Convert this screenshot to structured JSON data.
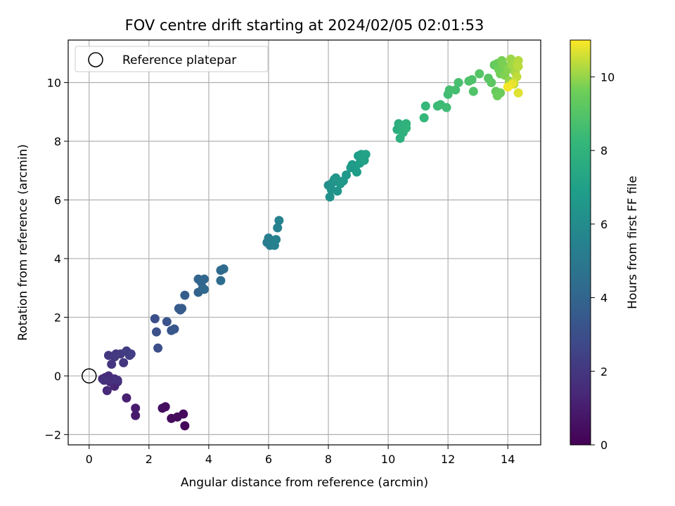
{
  "chart_data": {
    "type": "scatter",
    "title": "FOV centre drift starting at 2024/02/05 02:01:53",
    "xlabel": "Angular distance from reference (arcmin)",
    "ylabel": "Rotation from reference (arcmin)",
    "xlim": [
      -0.7,
      15.1
    ],
    "ylim": [
      -2.35,
      11.45
    ],
    "xticks": [
      0,
      2,
      4,
      6,
      8,
      10,
      12,
      14
    ],
    "yticks": [
      -2,
      0,
      2,
      4,
      6,
      8,
      10
    ],
    "grid": true,
    "legend": {
      "placement": "top-left",
      "entries": [
        "Reference platepar"
      ]
    },
    "reference_point": {
      "x": 0,
      "y": 0,
      "label": "Reference platepar"
    },
    "colorbar": {
      "label": "Hours from first FF file",
      "range": [
        0,
        11
      ],
      "ticks": [
        0,
        2,
        4,
        6,
        8,
        10
      ],
      "colormap": "viridis"
    },
    "series": [
      {
        "points": [
          [
            3.2,
            -1.7,
            0.2
          ],
          [
            3.15,
            -1.3,
            0.3
          ],
          [
            2.95,
            -1.4,
            0.35
          ],
          [
            2.75,
            -1.45,
            0.4
          ],
          [
            2.55,
            -1.05,
            0.45
          ],
          [
            2.45,
            -1.1,
            0.5
          ],
          [
            1.55,
            -1.35,
            0.9
          ],
          [
            1.55,
            -1.1,
            0.95
          ],
          [
            1.25,
            -0.75,
            1.1
          ],
          [
            0.85,
            -0.35,
            1.3
          ],
          [
            0.95,
            -0.2,
            1.35
          ],
          [
            0.7,
            -0.2,
            1.4
          ],
          [
            0.6,
            -0.5,
            1.45
          ],
          [
            0.45,
            -0.1,
            1.5
          ],
          [
            0.55,
            -0.05,
            1.55
          ],
          [
            0.65,
            0.0,
            1.6
          ],
          [
            0.75,
            -0.15,
            1.65
          ],
          [
            0.85,
            -0.1,
            1.7
          ],
          [
            0.95,
            -0.15,
            1.75
          ],
          [
            0.5,
            -0.15,
            1.8
          ],
          [
            0.75,
            0.4,
            1.9
          ],
          [
            1.15,
            0.45,
            1.95
          ],
          [
            0.65,
            0.7,
            2.0
          ],
          [
            0.9,
            0.75,
            2.05
          ],
          [
            0.85,
            0.65,
            2.1
          ],
          [
            1.05,
            0.75,
            2.15
          ],
          [
            1.25,
            0.85,
            2.2
          ],
          [
            1.35,
            0.7,
            2.25
          ],
          [
            1.4,
            0.75,
            2.3
          ],
          [
            2.3,
            0.95,
            3.0
          ],
          [
            2.2,
            1.95,
            3.05
          ],
          [
            2.25,
            1.5,
            3.1
          ],
          [
            2.6,
            1.85,
            3.2
          ],
          [
            2.75,
            1.55,
            3.3
          ],
          [
            2.85,
            1.6,
            3.35
          ],
          [
            3.0,
            2.3,
            3.5
          ],
          [
            3.05,
            2.25,
            3.55
          ],
          [
            3.1,
            2.3,
            3.6
          ],
          [
            3.2,
            2.75,
            3.65
          ],
          [
            3.65,
            2.85,
            3.9
          ],
          [
            3.65,
            3.3,
            3.95
          ],
          [
            3.75,
            3.2,
            4.0
          ],
          [
            3.8,
            3.0,
            4.05
          ],
          [
            3.85,
            3.3,
            4.1
          ],
          [
            3.85,
            2.95,
            4.15
          ],
          [
            4.4,
            3.6,
            4.3
          ],
          [
            4.5,
            3.65,
            4.35
          ],
          [
            4.4,
            3.25,
            4.4
          ],
          [
            5.95,
            4.55,
            5.2
          ],
          [
            6.05,
            4.45,
            5.25
          ],
          [
            6.0,
            4.7,
            5.3
          ],
          [
            6.1,
            4.5,
            5.35
          ],
          [
            6.2,
            4.45,
            5.4
          ],
          [
            6.25,
            4.65,
            5.45
          ],
          [
            6.3,
            5.05,
            5.5
          ],
          [
            6.35,
            5.3,
            5.55
          ],
          [
            8.0,
            6.5,
            6.2
          ],
          [
            8.05,
            6.1,
            6.25
          ],
          [
            8.1,
            6.35,
            6.3
          ],
          [
            8.15,
            6.6,
            6.35
          ],
          [
            8.2,
            6.7,
            6.4
          ],
          [
            8.3,
            6.3,
            6.45
          ],
          [
            8.25,
            6.75,
            6.5
          ],
          [
            8.4,
            6.55,
            6.55
          ],
          [
            8.5,
            6.65,
            6.6
          ],
          [
            8.6,
            6.85,
            6.65
          ],
          [
            8.75,
            7.1,
            6.7
          ],
          [
            8.8,
            7.2,
            6.75
          ],
          [
            8.9,
            7.05,
            6.8
          ],
          [
            8.95,
            6.95,
            6.85
          ],
          [
            9.0,
            7.5,
            6.9
          ],
          [
            9.05,
            7.25,
            6.95
          ],
          [
            9.1,
            7.55,
            7.0
          ],
          [
            9.2,
            7.35,
            7.05
          ],
          [
            9.25,
            7.55,
            7.1
          ],
          [
            10.3,
            8.4,
            7.7
          ],
          [
            10.35,
            8.6,
            7.75
          ],
          [
            10.4,
            8.1,
            7.8
          ],
          [
            10.45,
            8.5,
            7.85
          ],
          [
            10.5,
            8.3,
            7.9
          ],
          [
            10.6,
            8.6,
            7.95
          ],
          [
            10.6,
            8.45,
            8.0
          ],
          [
            11.2,
            8.8,
            8.2
          ],
          [
            11.25,
            9.2,
            8.25
          ],
          [
            11.65,
            9.2,
            8.4
          ],
          [
            11.75,
            9.25,
            8.45
          ],
          [
            11.95,
            9.15,
            8.5
          ],
          [
            12.0,
            9.6,
            8.55
          ],
          [
            12.05,
            9.75,
            8.6
          ],
          [
            12.25,
            9.75,
            8.65
          ],
          [
            12.35,
            10.0,
            8.7
          ],
          [
            12.7,
            10.05,
            8.8
          ],
          [
            12.8,
            10.1,
            8.85
          ],
          [
            12.85,
            9.7,
            8.9
          ],
          [
            13.05,
            10.3,
            9.0
          ],
          [
            13.35,
            10.15,
            9.1
          ],
          [
            13.45,
            10.0,
            9.2
          ],
          [
            13.55,
            10.6,
            9.3
          ],
          [
            13.6,
            9.7,
            9.4
          ],
          [
            13.65,
            10.65,
            9.45
          ],
          [
            13.75,
            9.65,
            9.5
          ],
          [
            13.65,
            9.55,
            9.55
          ],
          [
            13.7,
            10.45,
            9.6
          ],
          [
            13.75,
            10.3,
            9.65
          ],
          [
            13.8,
            10.75,
            9.7
          ],
          [
            13.85,
            10.6,
            9.75
          ],
          [
            13.9,
            10.25,
            9.8
          ],
          [
            14.0,
            10.45,
            9.85
          ],
          [
            14.1,
            10.55,
            9.9
          ],
          [
            14.05,
            10.05,
            9.95
          ],
          [
            14.05,
            9.95,
            10.0
          ],
          [
            14.1,
            10.8,
            10.05
          ],
          [
            14.15,
            10.6,
            10.1
          ],
          [
            14.2,
            9.95,
            10.15
          ],
          [
            14.25,
            10.35,
            10.2
          ],
          [
            14.3,
            10.6,
            10.25
          ],
          [
            14.35,
            10.75,
            10.3
          ],
          [
            14.35,
            10.55,
            10.35
          ],
          [
            14.3,
            10.2,
            10.4
          ],
          [
            14.2,
            10.0,
            10.5
          ],
          [
            14.35,
            9.65,
            10.7
          ],
          [
            14.15,
            9.95,
            10.8
          ],
          [
            14.0,
            9.85,
            10.9
          ]
        ]
      }
    ]
  },
  "legend_label": "Reference platepar"
}
